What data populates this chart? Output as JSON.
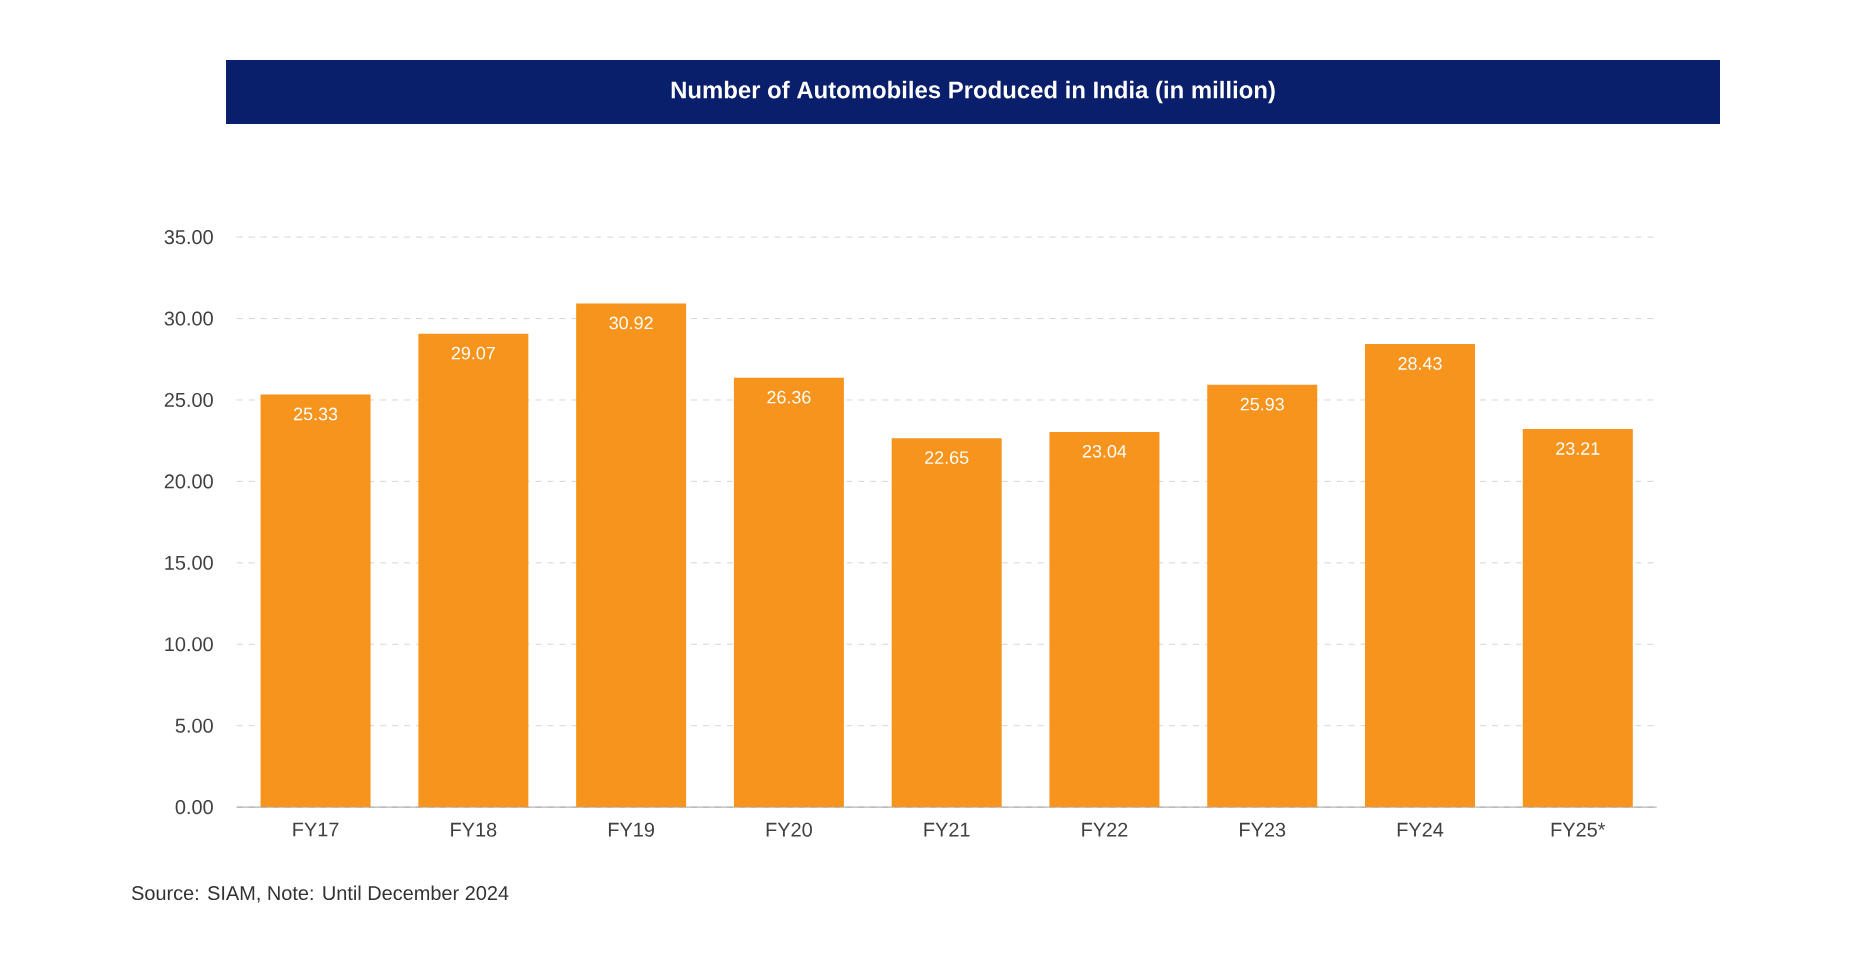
{
  "chart_data": {
    "type": "bar",
    "title": "Number of Automobiles Produced in India (in million)",
    "categories": [
      "FY17",
      "FY18",
      "FY19",
      "FY20",
      "FY21",
      "FY22",
      "FY23",
      "FY24",
      "FY25*"
    ],
    "values": [
      25.33,
      29.07,
      30.92,
      26.36,
      22.65,
      23.04,
      25.93,
      28.43,
      23.21
    ],
    "color": "#f7941d",
    "ylim": [
      0,
      35
    ],
    "yticks": [
      {
        "value": 0,
        "label": "0.00"
      },
      {
        "value": 5,
        "label": "5.00"
      },
      {
        "value": 10,
        "label": "10.00"
      },
      {
        "value": 15,
        "label": "15.00"
      },
      {
        "value": 20,
        "label": "20.00"
      },
      {
        "value": 25,
        "label": "25.00"
      },
      {
        "value": 30,
        "label": "30.00"
      },
      {
        "value": 35,
        "label": "35.00"
      }
    ],
    "grid": "y",
    "data_labels": true,
    "annotations": [
      "Source: SIAM, Note: Until December 2024"
    ]
  }
}
